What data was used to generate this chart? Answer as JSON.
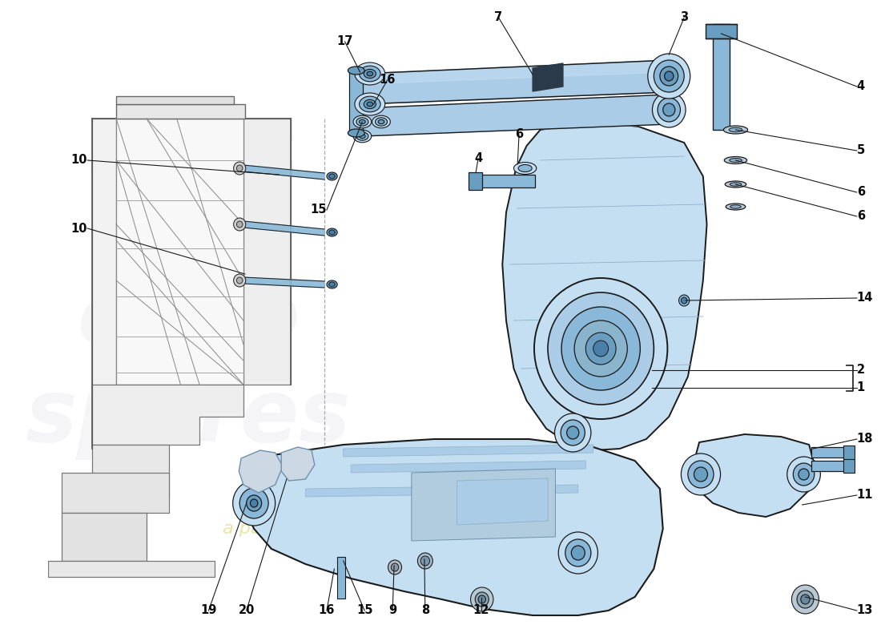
{
  "bg": "#ffffff",
  "lc": "#1a1a1a",
  "blue1": "#c5dff2",
  "blue2": "#aacce6",
  "blue3": "#8ab8d8",
  "blue4": "#6a9ec0",
  "blue5": "#4a80a8",
  "frame_fill": "#f0f0f0",
  "frame_edge": "#888888",
  "watermark_euro": "#c0c0cc",
  "watermark_text": "#c8c840",
  "label_fs": 10.5,
  "figsize": [
    11.0,
    8.0
  ],
  "dpi": 100,
  "label_positions": [
    [
      "17",
      392,
      52,
      "center"
    ],
    [
      "16",
      448,
      100,
      "center"
    ],
    [
      "7",
      595,
      22,
      "center"
    ],
    [
      "3",
      840,
      22,
      "center"
    ],
    [
      "4",
      1068,
      108,
      "left"
    ],
    [
      "5",
      1068,
      188,
      "left"
    ],
    [
      "6",
      1068,
      240,
      "left"
    ],
    [
      "6",
      1068,
      270,
      "left"
    ],
    [
      "4",
      568,
      198,
      "center"
    ],
    [
      "6",
      622,
      168,
      "center"
    ],
    [
      "10",
      52,
      200,
      "right"
    ],
    [
      "10",
      52,
      285,
      "right"
    ],
    [
      "15",
      368,
      262,
      "right"
    ],
    [
      "14",
      1068,
      372,
      "left"
    ],
    [
      "2",
      1068,
      462,
      "left"
    ],
    [
      "1",
      1068,
      484,
      "left"
    ],
    [
      "19",
      212,
      762,
      "center"
    ],
    [
      "20",
      262,
      762,
      "center"
    ],
    [
      "16",
      368,
      762,
      "center"
    ],
    [
      "15",
      418,
      762,
      "center"
    ],
    [
      "9",
      455,
      762,
      "center"
    ],
    [
      "8",
      498,
      762,
      "center"
    ],
    [
      "12",
      572,
      762,
      "center"
    ],
    [
      "18",
      1068,
      548,
      "left"
    ],
    [
      "11",
      1068,
      618,
      "left"
    ],
    [
      "13",
      1068,
      762,
      "left"
    ]
  ]
}
